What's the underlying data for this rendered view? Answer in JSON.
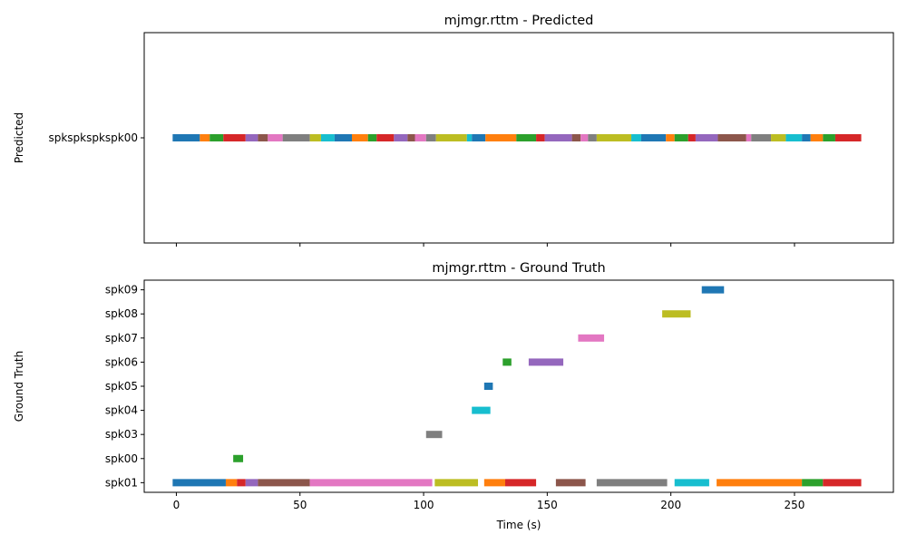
{
  "chart_data": [
    {
      "type": "timeline",
      "title": "mjmgr.rttm - Predicted",
      "ylabel": "Predicted",
      "xlabel": "",
      "xlim": [
        -13,
        290
      ],
      "xticks": [
        0,
        50,
        100,
        150,
        200,
        250
      ],
      "show_xtick_labels": false,
      "rows": [
        "spkspkspkspk00"
      ],
      "grid": false,
      "segments": [
        {
          "row": "spkspkspkspk00",
          "start": -1.5,
          "end": 9.5,
          "color": "#1f77b4"
        },
        {
          "row": "spkspkspkspk00",
          "start": 9.5,
          "end": 13.5,
          "color": "#ff7f0e"
        },
        {
          "row": "spkspkspkspk00",
          "start": 13.5,
          "end": 19,
          "color": "#2ca02c"
        },
        {
          "row": "spkspkspkspk00",
          "start": 19,
          "end": 28,
          "color": "#d62728"
        },
        {
          "row": "spkspkspkspk00",
          "start": 28,
          "end": 33,
          "color": "#9467bd"
        },
        {
          "row": "spkspkspkspk00",
          "start": 33,
          "end": 37,
          "color": "#8c564b"
        },
        {
          "row": "spkspkspkspk00",
          "start": 37,
          "end": 43,
          "color": "#e377c2"
        },
        {
          "row": "spkspkspkspk00",
          "start": 43,
          "end": 54,
          "color": "#7f7f7f"
        },
        {
          "row": "spkspkspkspk00",
          "start": 54,
          "end": 58.5,
          "color": "#bcbd22"
        },
        {
          "row": "spkspkspkspk00",
          "start": 58.5,
          "end": 64,
          "color": "#17becf"
        },
        {
          "row": "spkspkspkspk00",
          "start": 64,
          "end": 71,
          "color": "#1f77b4"
        },
        {
          "row": "spkspkspkspk00",
          "start": 71,
          "end": 77.5,
          "color": "#ff7f0e"
        },
        {
          "row": "spkspkspkspk00",
          "start": 77.5,
          "end": 81,
          "color": "#2ca02c"
        },
        {
          "row": "spkspkspkspk00",
          "start": 81,
          "end": 88,
          "color": "#d62728"
        },
        {
          "row": "spkspkspkspk00",
          "start": 88,
          "end": 93.5,
          "color": "#9467bd"
        },
        {
          "row": "spkspkspkspk00",
          "start": 93.5,
          "end": 96.5,
          "color": "#8c564b"
        },
        {
          "row": "spkspkspkspk00",
          "start": 96.5,
          "end": 101,
          "color": "#e377c2"
        },
        {
          "row": "spkspkspkspk00",
          "start": 101,
          "end": 105,
          "color": "#7f7f7f"
        },
        {
          "row": "spkspkspkspk00",
          "start": 105,
          "end": 117.5,
          "color": "#bcbd22"
        },
        {
          "row": "spkspkspkspk00",
          "start": 117.5,
          "end": 119.5,
          "color": "#17becf"
        },
        {
          "row": "spkspkspkspk00",
          "start": 119.5,
          "end": 125,
          "color": "#1f77b4"
        },
        {
          "row": "spkspkspkspk00",
          "start": 125,
          "end": 137.5,
          "color": "#ff7f0e"
        },
        {
          "row": "spkspkspkspk00",
          "start": 137.5,
          "end": 145.5,
          "color": "#2ca02c"
        },
        {
          "row": "spkspkspkspk00",
          "start": 145.5,
          "end": 149,
          "color": "#d62728"
        },
        {
          "row": "spkspkspkspk00",
          "start": 149,
          "end": 160,
          "color": "#9467bd"
        },
        {
          "row": "spkspkspkspk00",
          "start": 160,
          "end": 163.5,
          "color": "#8c564b"
        },
        {
          "row": "spkspkspkspk00",
          "start": 163.5,
          "end": 166.5,
          "color": "#e377c2"
        },
        {
          "row": "spkspkspkspk00",
          "start": 166.5,
          "end": 170,
          "color": "#7f7f7f"
        },
        {
          "row": "spkspkspkspk00",
          "start": 170,
          "end": 184,
          "color": "#bcbd22"
        },
        {
          "row": "spkspkspkspk00",
          "start": 184,
          "end": 188,
          "color": "#17becf"
        },
        {
          "row": "spkspkspkspk00",
          "start": 188,
          "end": 198,
          "color": "#1f77b4"
        },
        {
          "row": "spkspkspkspk00",
          "start": 198,
          "end": 201.5,
          "color": "#ff7f0e"
        },
        {
          "row": "spkspkspkspk00",
          "start": 201.5,
          "end": 207,
          "color": "#2ca02c"
        },
        {
          "row": "spkspkspkspk00",
          "start": 207,
          "end": 210,
          "color": "#d62728"
        },
        {
          "row": "spkspkspkspk00",
          "start": 210,
          "end": 219,
          "color": "#9467bd"
        },
        {
          "row": "spkspkspkspk00",
          "start": 219,
          "end": 230.5,
          "color": "#8c564b"
        },
        {
          "row": "spkspkspkspk00",
          "start": 230.5,
          "end": 232.5,
          "color": "#e377c2"
        },
        {
          "row": "spkspkspkspk00",
          "start": 232.5,
          "end": 240.5,
          "color": "#7f7f7f"
        },
        {
          "row": "spkspkspkspk00",
          "start": 240.5,
          "end": 246.5,
          "color": "#bcbd22"
        },
        {
          "row": "spkspkspkspk00",
          "start": 246.5,
          "end": 253,
          "color": "#17becf"
        },
        {
          "row": "spkspkspkspk00",
          "start": 253,
          "end": 256.5,
          "color": "#1f77b4"
        },
        {
          "row": "spkspkspkspk00",
          "start": 256.5,
          "end": 261.5,
          "color": "#ff7f0e"
        },
        {
          "row": "spkspkspkspk00",
          "start": 261.5,
          "end": 266.5,
          "color": "#2ca02c"
        },
        {
          "row": "spkspkspkspk00",
          "start": 266.5,
          "end": 277,
          "color": "#d62728"
        }
      ]
    },
    {
      "type": "timeline",
      "title": "mjmgr.rttm - Ground Truth",
      "ylabel": "Ground Truth",
      "xlabel": "Time (s)",
      "xlim": [
        -13,
        290
      ],
      "xticks": [
        0,
        50,
        100,
        150,
        200,
        250
      ],
      "show_xtick_labels": true,
      "rows": [
        "spk01",
        "spk00",
        "spk03",
        "spk04",
        "spk05",
        "spk06",
        "spk07",
        "spk08",
        "spk09"
      ],
      "grid": false,
      "segments": [
        {
          "row": "spk01",
          "start": -1.5,
          "end": 20,
          "color": "#1f77b4"
        },
        {
          "row": "spk01",
          "start": 20,
          "end": 24.5,
          "color": "#ff7f0e"
        },
        {
          "row": "spk01",
          "start": 24.5,
          "end": 28,
          "color": "#d62728"
        },
        {
          "row": "spk01",
          "start": 28,
          "end": 33,
          "color": "#9467bd"
        },
        {
          "row": "spk01",
          "start": 33,
          "end": 54,
          "color": "#8c564b"
        },
        {
          "row": "spk01",
          "start": 54,
          "end": 103.5,
          "color": "#e377c2"
        },
        {
          "row": "spk01",
          "start": 104.5,
          "end": 122,
          "color": "#bcbd22"
        },
        {
          "row": "spk01",
          "start": 124.5,
          "end": 133,
          "color": "#ff7f0e"
        },
        {
          "row": "spk01",
          "start": 133,
          "end": 145.5,
          "color": "#d62728"
        },
        {
          "row": "spk01",
          "start": 153.5,
          "end": 165.5,
          "color": "#8c564b"
        },
        {
          "row": "spk01",
          "start": 170,
          "end": 198.5,
          "color": "#7f7f7f"
        },
        {
          "row": "spk01",
          "start": 201.5,
          "end": 215.5,
          "color": "#17becf"
        },
        {
          "row": "spk01",
          "start": 218.5,
          "end": 253,
          "color": "#ff7f0e"
        },
        {
          "row": "spk01",
          "start": 253,
          "end": 261.5,
          "color": "#2ca02c"
        },
        {
          "row": "spk01",
          "start": 261.5,
          "end": 277,
          "color": "#d62728"
        },
        {
          "row": "spk00",
          "start": 23,
          "end": 27,
          "color": "#2ca02c"
        },
        {
          "row": "spk03",
          "start": 101,
          "end": 107.5,
          "color": "#7f7f7f"
        },
        {
          "row": "spk04",
          "start": 119.5,
          "end": 127,
          "color": "#17becf"
        },
        {
          "row": "spk05",
          "start": 124.5,
          "end": 128,
          "color": "#1f77b4"
        },
        {
          "row": "spk06",
          "start": 132,
          "end": 135.5,
          "color": "#2ca02c"
        },
        {
          "row": "spk06",
          "start": 142.5,
          "end": 156.5,
          "color": "#9467bd"
        },
        {
          "row": "spk07",
          "start": 162.5,
          "end": 173,
          "color": "#e377c2"
        },
        {
          "row": "spk08",
          "start": 196.5,
          "end": 208,
          "color": "#bcbd22"
        },
        {
          "row": "spk09",
          "start": 212.5,
          "end": 221.5,
          "color": "#1f77b4"
        }
      ]
    }
  ]
}
